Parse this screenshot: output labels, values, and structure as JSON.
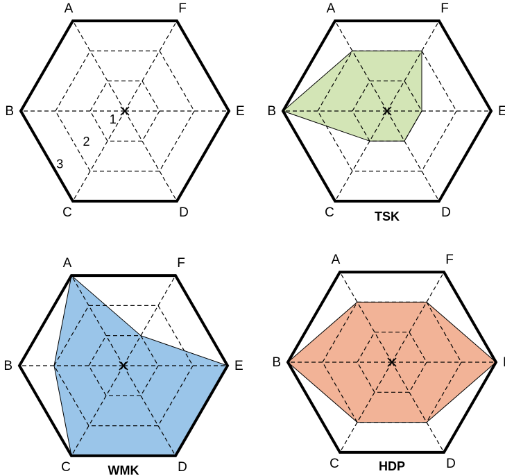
{
  "chart_data": [
    {
      "type": "radar",
      "title": "",
      "axes": [
        "A",
        "F",
        "E",
        "D",
        "C",
        "B"
      ],
      "scale": [
        0,
        3
      ],
      "ring_labels": [
        "1",
        "2",
        "3"
      ],
      "series": []
    },
    {
      "type": "radar",
      "title": "TSK",
      "axes": [
        "A",
        "F",
        "E",
        "D",
        "C",
        "B"
      ],
      "scale": [
        0,
        3
      ],
      "series": [
        {
          "values": [
            2.0,
            2.0,
            1.0,
            1.0,
            1.0,
            3.0
          ],
          "color": "#d3e5b6"
        }
      ]
    },
    {
      "type": "radar",
      "title": "WMK",
      "axes": [
        "A",
        "F",
        "E",
        "D",
        "C",
        "B"
      ],
      "scale": [
        0,
        3
      ],
      "series": [
        {
          "values": [
            3.0,
            1.0,
            3.0,
            3.0,
            3.0,
            2.0
          ],
          "color": "#9ac5e9"
        }
      ]
    },
    {
      "type": "radar",
      "title": "HDP",
      "axes": [
        "A",
        "F",
        "E",
        "D",
        "C",
        "B"
      ],
      "scale": [
        0,
        3
      ],
      "series": [
        {
          "values": [
            2.0,
            2.0,
            3.0,
            2.0,
            2.0,
            3.0
          ],
          "color": "#f2b397"
        }
      ]
    }
  ]
}
